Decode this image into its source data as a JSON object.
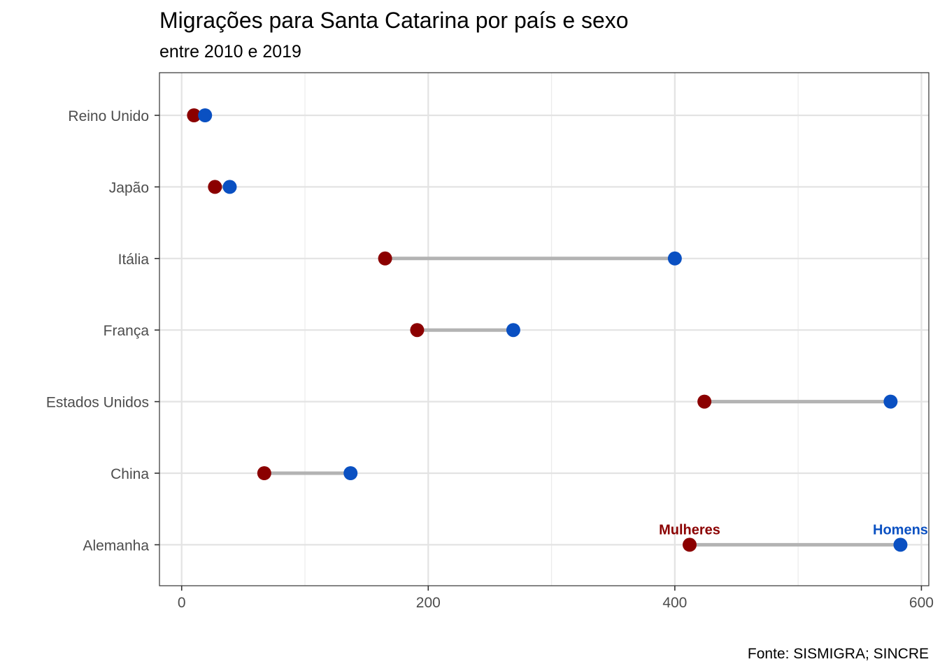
{
  "chart_data": {
    "type": "dumbbell",
    "title": "Migrações para Santa Catarina por país e sexo",
    "subtitle": "entre 2010 e 2019",
    "caption": "Fonte: SISMIGRA; SINCRE",
    "xlabel": "",
    "ylabel": "",
    "xlim": [
      -18,
      606
    ],
    "x_ticks": [
      0,
      200,
      400,
      600
    ],
    "x_tick_labels": [
      "0",
      "200",
      "400",
      "600"
    ],
    "grid": true,
    "categories": [
      "Reino Unido",
      "Japão",
      "Itália",
      "França",
      "Estados Unidos",
      "China",
      "Alemanha"
    ],
    "series": [
      {
        "name": "Mulheres",
        "color": "#8B0000",
        "values": [
          10,
          27,
          165,
          191,
          424,
          67,
          412
        ]
      },
      {
        "name": "Homens",
        "color": "#0A50C2",
        "values": [
          19,
          39,
          400,
          269,
          575,
          137,
          583
        ]
      }
    ],
    "segment_color": "#B3B3B3",
    "point_labels_category": "Alemanha"
  }
}
